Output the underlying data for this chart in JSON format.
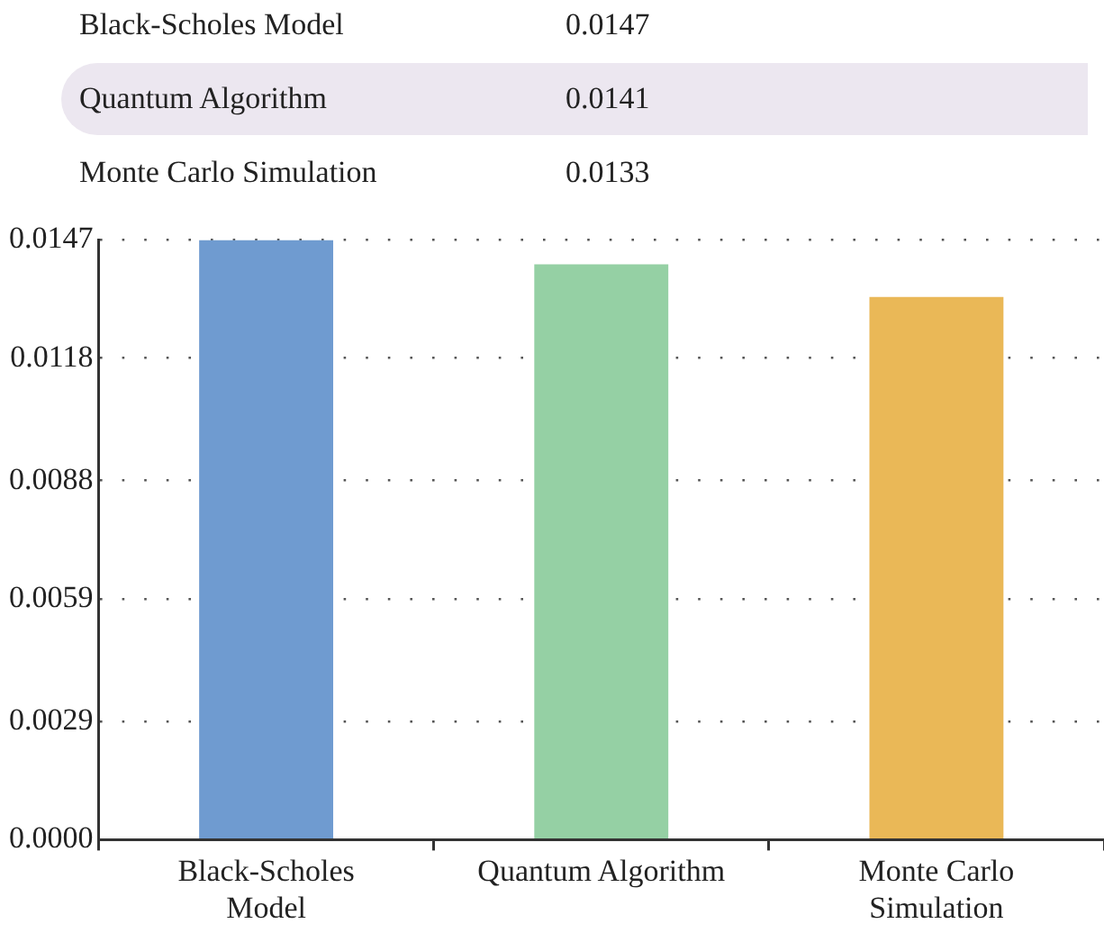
{
  "chart_data": {
    "type": "bar",
    "categories": [
      "Black-Scholes Model",
      "Quantum Algorithm",
      "Monte Carlo Simulation"
    ],
    "values": [
      0.0147,
      0.0141,
      0.0133
    ],
    "colors": [
      "#6f9bd0",
      "#95d0a4",
      "#eab857"
    ],
    "ylim": [
      0,
      0.0147
    ],
    "yticks": [
      {
        "value": 0,
        "label": "0.0000"
      },
      0.0029,
      0.0059,
      0.0088,
      0.0118,
      0.0147
    ],
    "grid": "y",
    "annotations": [
      "0.0147",
      "0.0141",
      "0.0133"
    ]
  }
}
